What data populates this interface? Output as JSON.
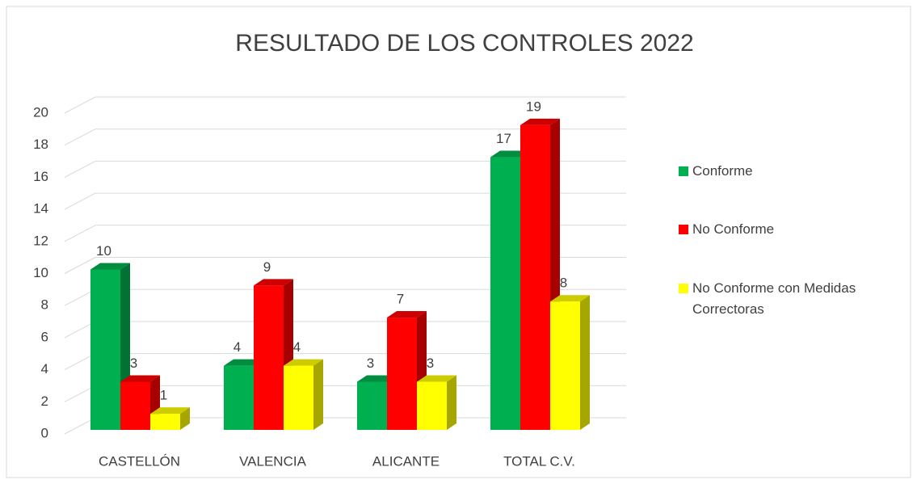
{
  "chart_data": {
    "type": "bar3d",
    "title": "RESULTADO DE LOS CONTROLES 2022",
    "categories": [
      "CASTELLÓN",
      "VALENCIA",
      "ALICANTE",
      "TOTAL C.V."
    ],
    "series": [
      {
        "name": "Conforme",
        "color": "#00b050",
        "values": [
          10,
          4,
          3,
          17
        ]
      },
      {
        "name": "No Conforme",
        "color": "#ff0000",
        "values": [
          3,
          9,
          7,
          19
        ]
      },
      {
        "name": "No Conforme con Medidas Correctoras",
        "color": "#ffff00",
        "values": [
          1,
          4,
          3,
          8
        ]
      }
    ],
    "ylim": [
      0,
      20
    ],
    "yticks": [
      0,
      2,
      4,
      6,
      8,
      10,
      12,
      14,
      16,
      18,
      20
    ],
    "grid": true,
    "legend": "right"
  }
}
